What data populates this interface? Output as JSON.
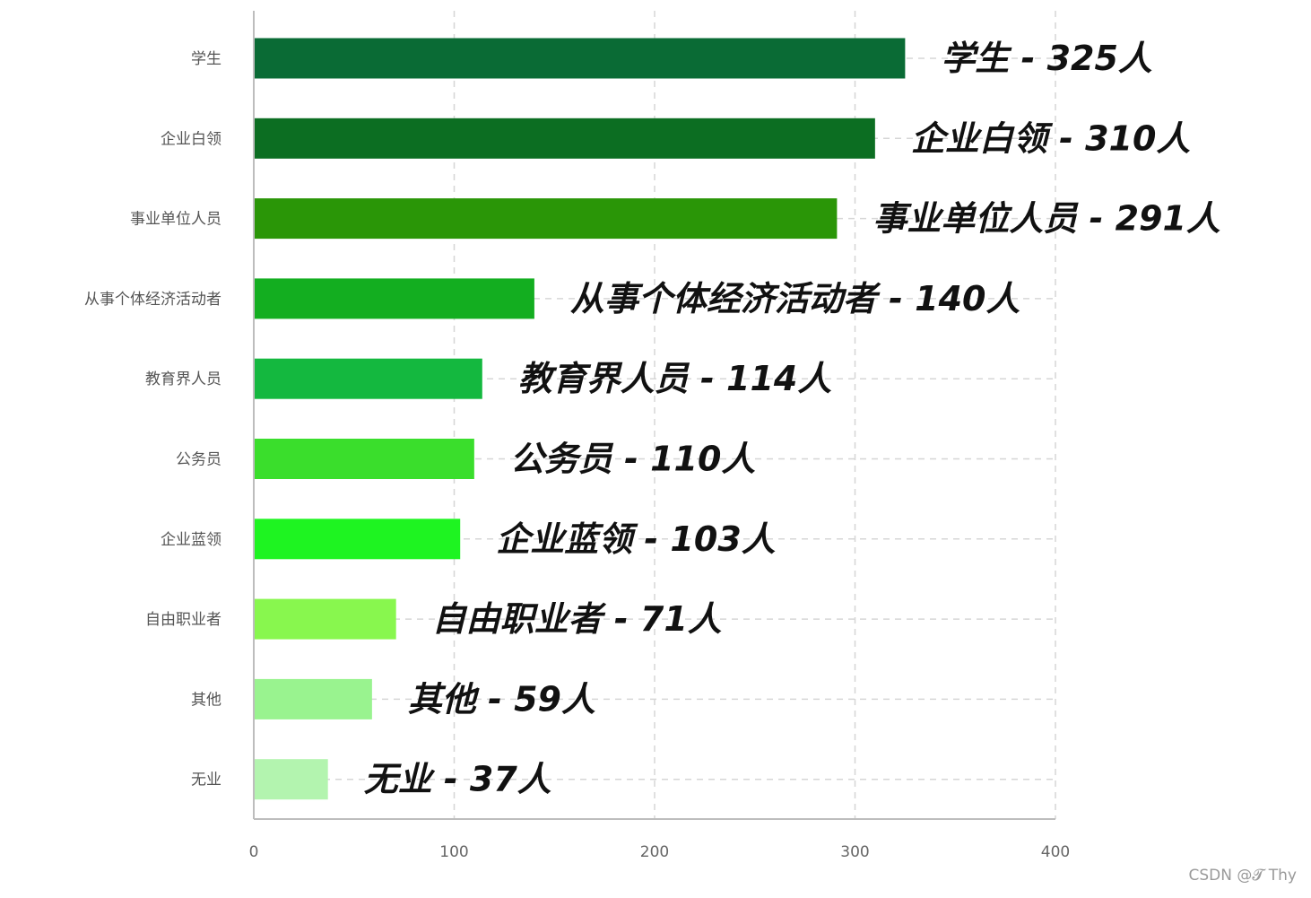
{
  "chart_data": {
    "type": "bar",
    "orientation": "horizontal",
    "categories": [
      "学生",
      "企业白领",
      "事业单位人员",
      "从事个体经济活动者",
      "教育界人员",
      "公务员",
      "企业蓝领",
      "自由职业者",
      "其他",
      "无业"
    ],
    "values": [
      325,
      310,
      291,
      140,
      114,
      110,
      103,
      71,
      59,
      37
    ],
    "data_labels": [
      "学生 - 325人",
      "企业白领 - 310人",
      "事业单位人员 - 291人",
      "从事个体经济活动者 - 140人",
      "教育界人员 - 114人",
      "公务员 - 110人",
      "企业蓝领 - 103人",
      "自由职业者 - 71人",
      "其他 - 59人",
      "无业 - 37人"
    ],
    "colors": [
      "#0a6b35",
      "#0c6e22",
      "#2a9607",
      "#13ae20",
      "#14b83f",
      "#3ade2c",
      "#1ef421",
      "#88f74e",
      "#99f38f",
      "#b3f4af"
    ],
    "xlim": [
      0,
      400
    ],
    "xticks": [
      "0",
      "100",
      "200",
      "300",
      "400"
    ],
    "grid": true,
    "title": "",
    "xlabel": "",
    "ylabel": ""
  },
  "watermark": "CSDN @𝓣 Thy"
}
